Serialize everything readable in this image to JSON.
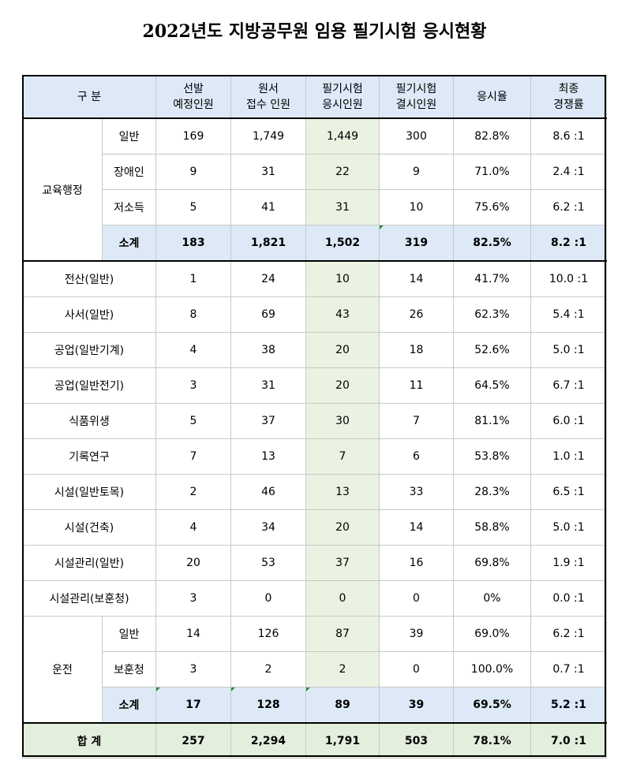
{
  "title": "2022년도 지방공무원 임용 필기시험 응시현황",
  "headers": {
    "category": "구  분",
    "planned": [
      "선발",
      "예정인원"
    ],
    "applied": [
      "원서",
      "접수 인원"
    ],
    "exam_taken": [
      "필기시험",
      "응시인원"
    ],
    "exam_absent": [
      "필기시험",
      "결시인원"
    ],
    "rate": "응시율",
    "competition": [
      "최종",
      "경쟁률"
    ]
  },
  "groups": {
    "edu_admin": "교육행정",
    "driving": "운전"
  },
  "rows": [
    {
      "sub": "일반",
      "vals": [
        "169",
        "1,749",
        "1,449",
        "300",
        "82.8%",
        "8.6 :1"
      ]
    },
    {
      "sub": "장애인",
      "vals": [
        "9",
        "31",
        "22",
        "9",
        "71.0%",
        "2.4 :1"
      ]
    },
    {
      "sub": "저소득",
      "vals": [
        "5",
        "41",
        "31",
        "10",
        "75.6%",
        "6.2 :1"
      ]
    },
    {
      "sub": "소계",
      "vals": [
        "183",
        "1,821",
        "1,502",
        "319",
        "82.5%",
        "8.2 :1"
      ]
    },
    {
      "name": "전산(일반)",
      "vals": [
        "1",
        "24",
        "10",
        "14",
        "41.7%",
        "10.0 :1"
      ]
    },
    {
      "name": "사서(일반)",
      "vals": [
        "8",
        "69",
        "43",
        "26",
        "62.3%",
        "5.4 :1"
      ]
    },
    {
      "name": "공업(일반기계)",
      "vals": [
        "4",
        "38",
        "20",
        "18",
        "52.6%",
        "5.0 :1"
      ]
    },
    {
      "name": "공업(일반전기)",
      "vals": [
        "3",
        "31",
        "20",
        "11",
        "64.5%",
        "6.7 :1"
      ]
    },
    {
      "name": "식품위생",
      "vals": [
        "5",
        "37",
        "30",
        "7",
        "81.1%",
        "6.0 :1"
      ]
    },
    {
      "name": "기록연구",
      "vals": [
        "7",
        "13",
        "7",
        "6",
        "53.8%",
        "1.0 :1"
      ]
    },
    {
      "name": "시설(일반토목)",
      "vals": [
        "2",
        "46",
        "13",
        "33",
        "28.3%",
        "6.5 :1"
      ]
    },
    {
      "name": "시설(건축)",
      "vals": [
        "4",
        "34",
        "20",
        "14",
        "58.8%",
        "5.0 :1"
      ]
    },
    {
      "name": "시설관리(일반)",
      "vals": [
        "20",
        "53",
        "37",
        "16",
        "69.8%",
        "1.9 :1"
      ]
    },
    {
      "name": "시설관리(보훈청)",
      "vals": [
        "3",
        "0",
        "0",
        "0",
        "0%",
        "0.0 :1"
      ]
    },
    {
      "sub": "일반",
      "vals": [
        "14",
        "126",
        "87",
        "39",
        "69.0%",
        "6.2 :1"
      ]
    },
    {
      "sub": "보훈청",
      "vals": [
        "3",
        "2",
        "2",
        "0",
        "100.0%",
        "0.7 :1"
      ]
    },
    {
      "sub": "소계",
      "vals": [
        "17",
        "128",
        "89",
        "39",
        "69.5%",
        "5.2 :1"
      ]
    }
  ],
  "total": {
    "label": "합    계",
    "vals": [
      "257",
      "2,294",
      "1,791",
      "503",
      "78.1%",
      "7.0 :1"
    ]
  },
  "colors": {
    "header_bg": "#dde9f6",
    "exam_col_bg": "#eaf3e2",
    "total_bg": "#e3efdd",
    "marker": "#2e8b3e"
  }
}
